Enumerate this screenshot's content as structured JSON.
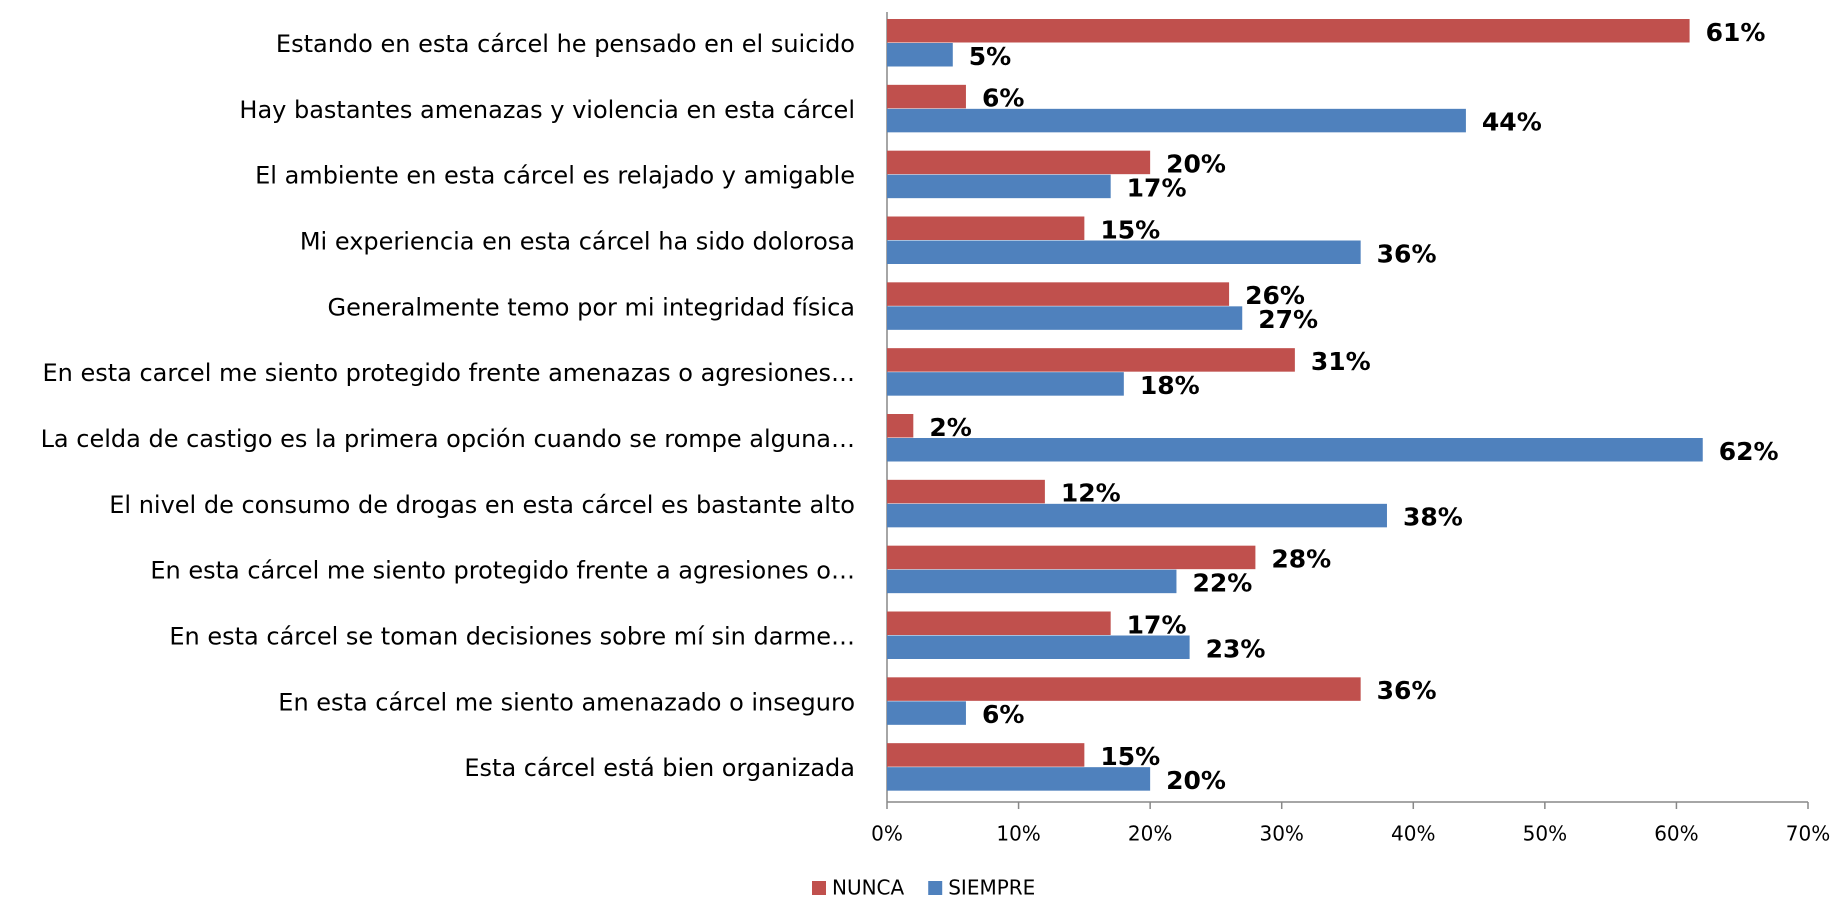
{
  "chart_data": {
    "type": "hbar",
    "categories": [
      "Estando en esta cárcel he pensado en el suicido",
      "Hay bastantes amenazas y violencia en esta cárcel",
      "El ambiente en esta cárcel es relajado y amigable",
      "Mi experiencia en esta cárcel ha sido dolorosa",
      "Generalmente temo por mi integridad física",
      "En esta carcel me siento protegido frente amenazas o agresiones…",
      "La celda de castigo es la primera opción cuando se rompe alguna…",
      "El nivel de consumo de drogas en esta cárcel es bastante alto",
      "En esta cárcel me siento protegido frente a agresiones o…",
      "En esta cárcel se toman decisiones sobre mí sin darme…",
      "En esta cárcel me siento amenazado o inseguro",
      "Esta cárcel está bien organizada"
    ],
    "series": [
      {
        "name": "NUNCA",
        "color": "#c0504d",
        "values": [
          61,
          6,
          20,
          15,
          26,
          31,
          2,
          12,
          28,
          17,
          36,
          15
        ],
        "value_labels": [
          "61%",
          "6%",
          "20%",
          "15%",
          "26%",
          "31%",
          "2%",
          "12%",
          "28%",
          "17%",
          "36%",
          "15%"
        ]
      },
      {
        "name": "SIEMPRE",
        "color": "#4f81bd",
        "values": [
          5,
          44,
          17,
          36,
          27,
          18,
          62,
          38,
          22,
          23,
          6,
          20
        ],
        "value_labels": [
          "5%",
          "44%",
          "17%",
          "36%",
          "27%",
          "18%",
          "62%",
          "38%",
          "22%",
          "23%",
          "6%",
          "20%"
        ]
      }
    ],
    "xlim": [
      0,
      70
    ],
    "xticks": [
      {
        "value": 0,
        "label": "0%"
      },
      {
        "value": 10,
        "label": "10%"
      },
      {
        "value": 20,
        "label": "20%"
      },
      {
        "value": 30,
        "label": "30%"
      },
      {
        "value": 40,
        "label": "40%"
      },
      {
        "value": 50,
        "label": "50%"
      },
      {
        "value": 60,
        "label": "60%"
      },
      {
        "value": 70,
        "label": "70%"
      }
    ],
    "legend": "bottom"
  }
}
